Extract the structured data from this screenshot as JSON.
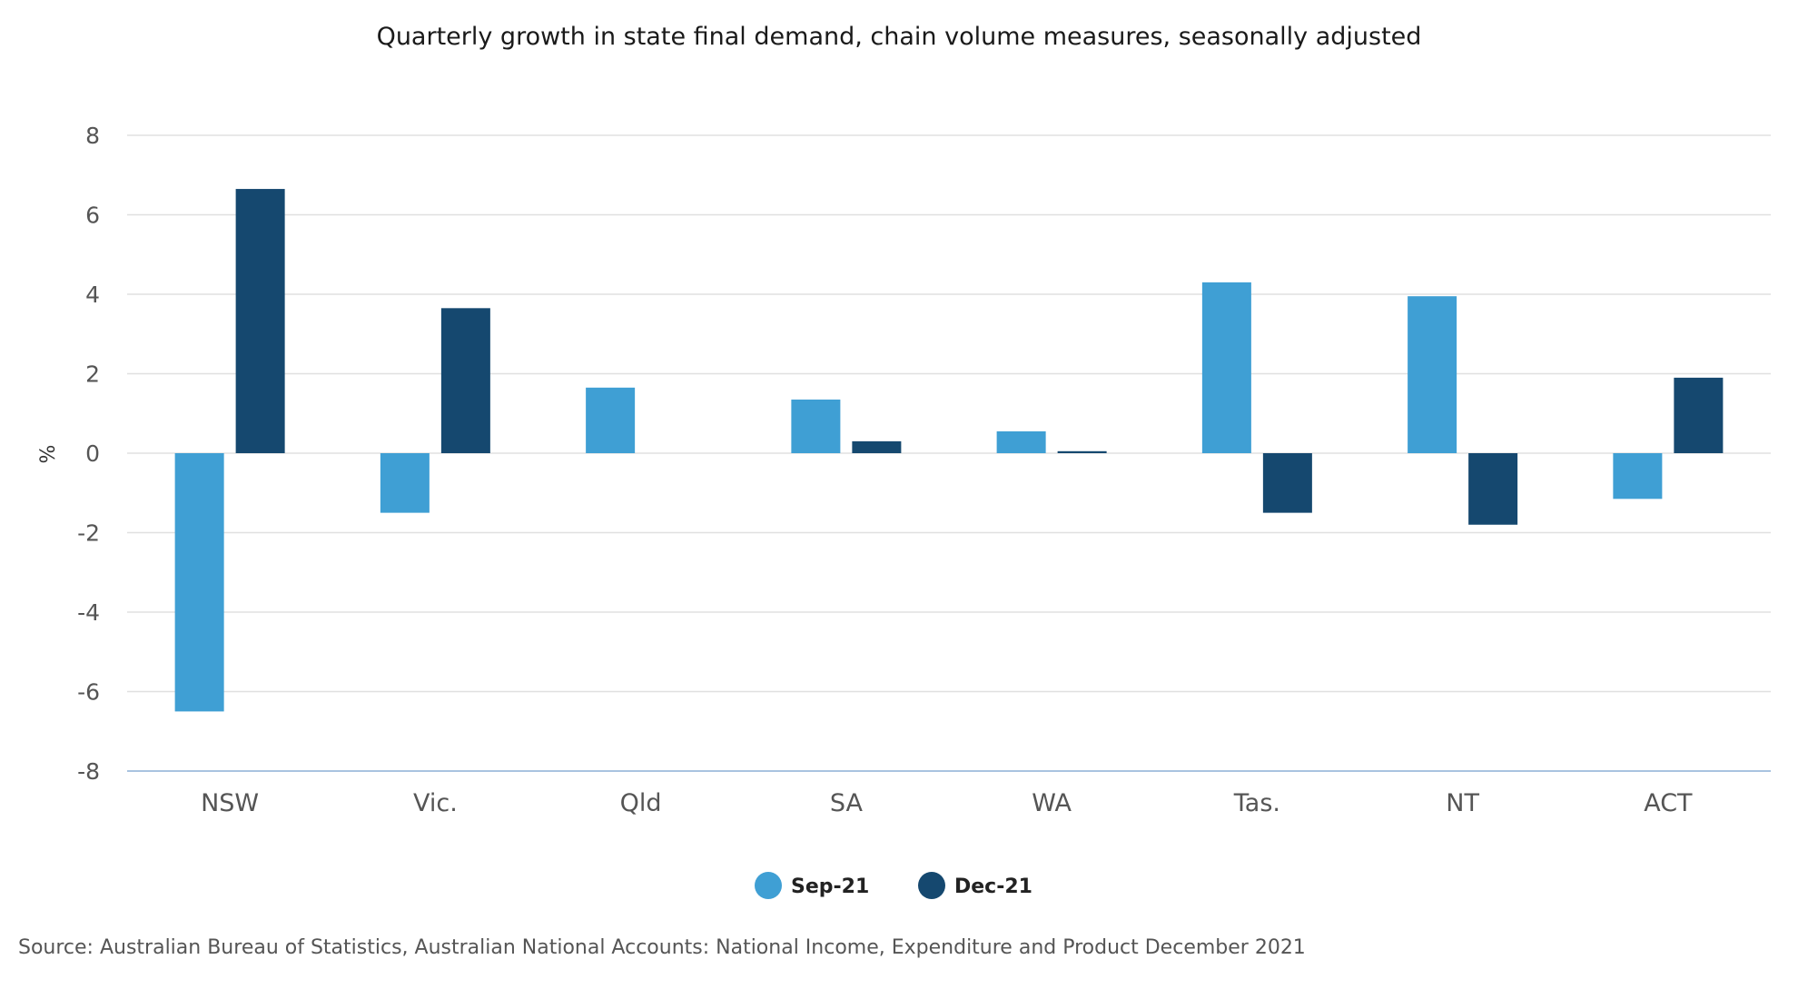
{
  "chart_data": {
    "type": "bar",
    "title": "Quarterly growth in state final demand, chain volume measures, seasonally adjusted",
    "ylabel": "%",
    "ylim": [
      -8,
      8
    ],
    "yticks": [
      "8",
      "6",
      "4",
      "2",
      "0",
      "-2",
      "-4",
      "-6",
      "-8"
    ],
    "categories": [
      "NSW",
      "Vic.",
      "Qld",
      "SA",
      "WA",
      "Tas.",
      "NT",
      "ACT"
    ],
    "series": [
      {
        "name": "Sep-21",
        "color": "#3f9fd4",
        "values": [
          -6.5,
          -1.5,
          1.65,
          1.35,
          0.55,
          4.3,
          3.95,
          -1.15
        ]
      },
      {
        "name": "Dec-21",
        "color": "#15486f",
        "values": [
          6.65,
          3.65,
          0.0,
          0.3,
          0.05,
          -1.5,
          -1.8,
          1.9
        ]
      }
    ],
    "grid": true,
    "legend_position": "bottom-center",
    "source": "Source: Australian Bureau of Statistics, Australian National Accounts: National Income, Expenditure and Product December 2021"
  }
}
